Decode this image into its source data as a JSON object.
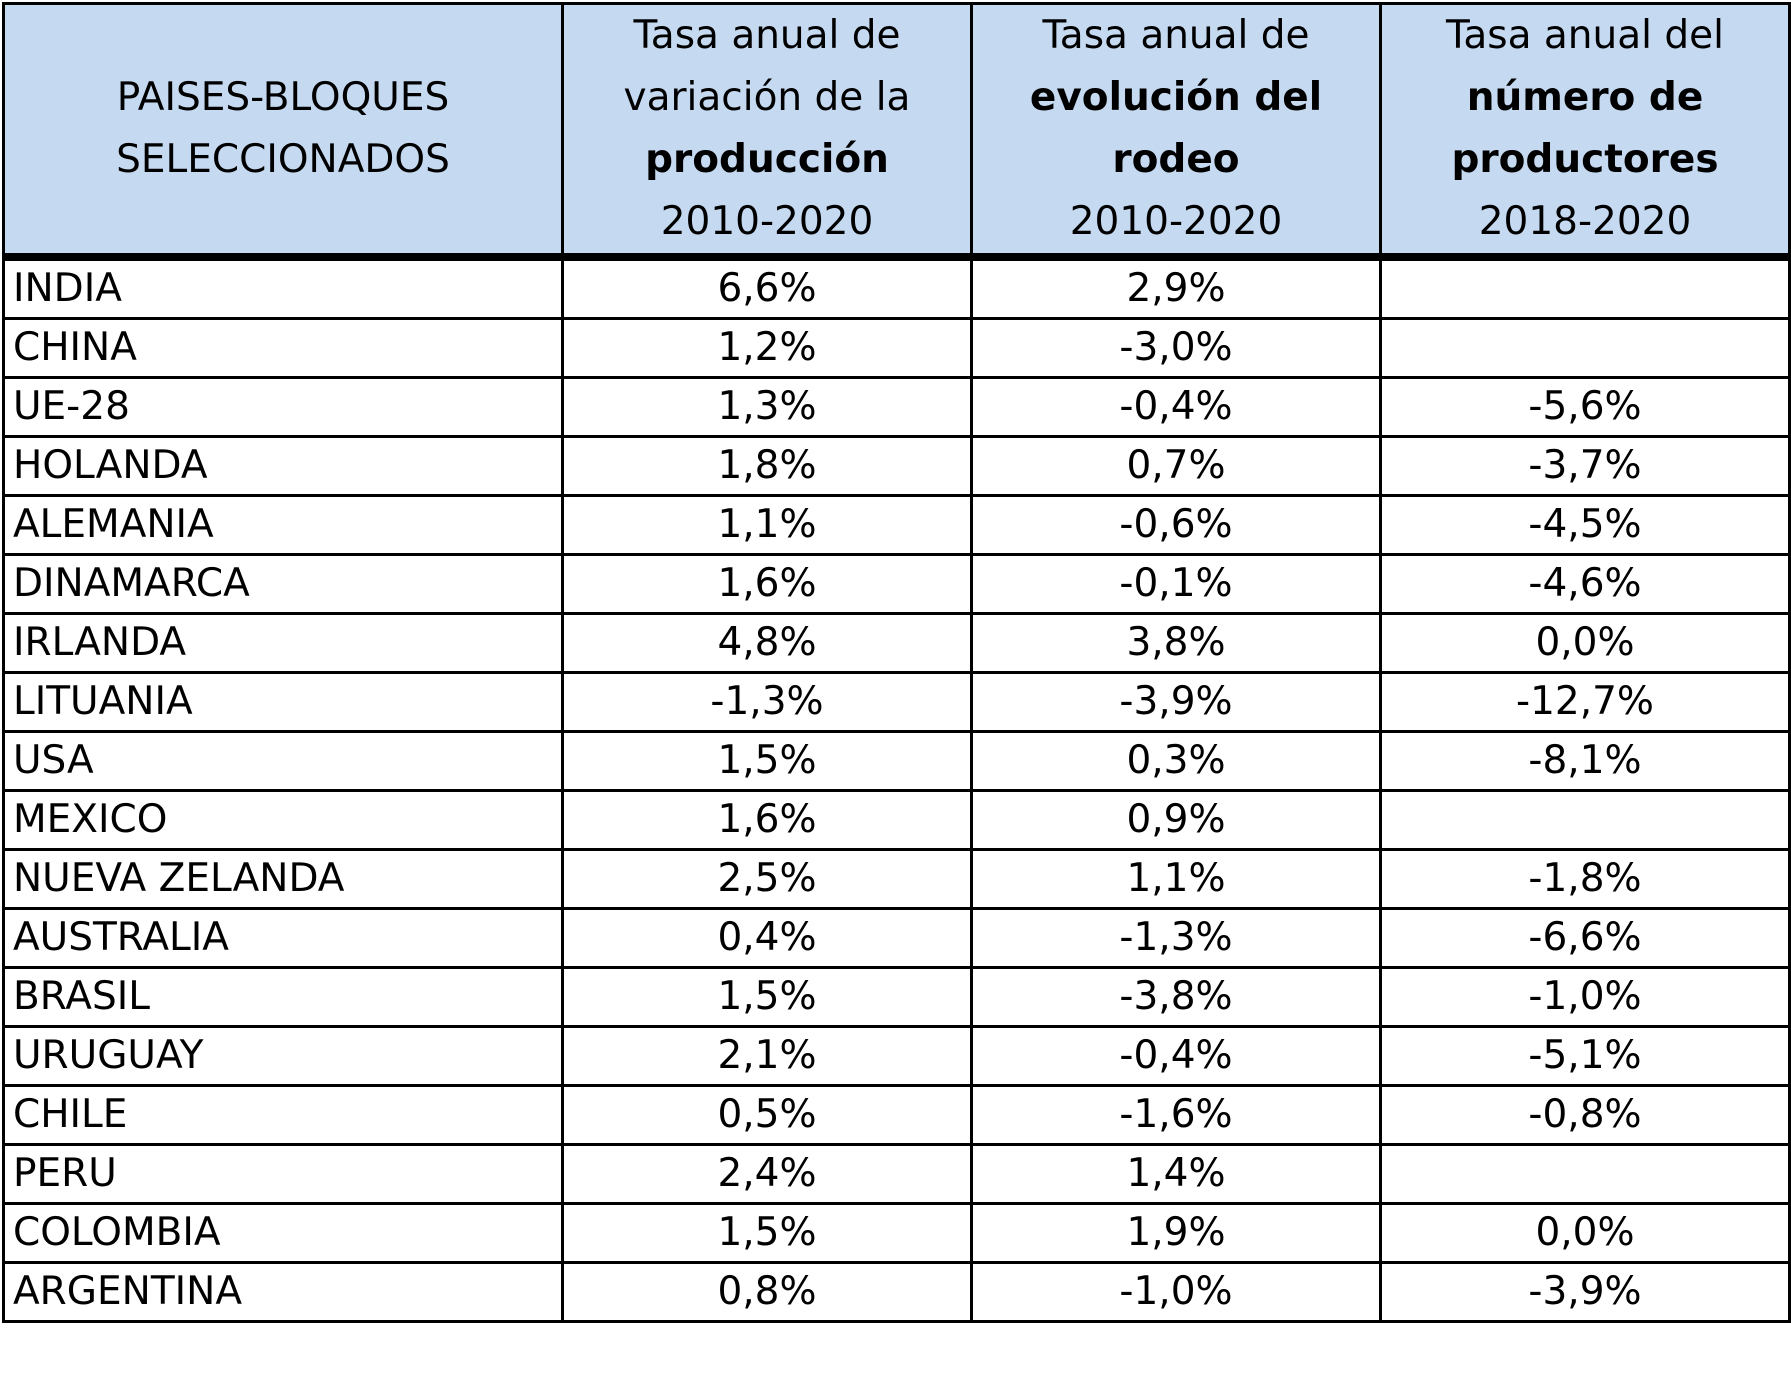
{
  "header": {
    "col0": [
      "PAISES-BLOQUES",
      "SELECCIONADOS"
    ],
    "col1": {
      "line1": "Tasa anual de",
      "line2": "variación de la",
      "bold": "producción",
      "period": "2010-2020"
    },
    "col2": {
      "line1": "Tasa anual de",
      "bold": "evolución del rodeo",
      "period": "2010-2020"
    },
    "col3": {
      "line1": "Tasa anual del",
      "bold1": "número de",
      "bold2": "productores",
      "period": "2018-2020"
    }
  },
  "rows": [
    {
      "pais": "INDIA",
      "produccion": "6,6%",
      "rodeo": "2,9%",
      "productores": ""
    },
    {
      "pais": "CHINA",
      "produccion": "1,2%",
      "rodeo": "-3,0%",
      "productores": ""
    },
    {
      "pais": "UE-28",
      "produccion": "1,3%",
      "rodeo": "-0,4%",
      "productores": "-5,6%"
    },
    {
      "pais": "HOLANDA",
      "produccion": "1,8%",
      "rodeo": "0,7%",
      "productores": "-3,7%"
    },
    {
      "pais": "ALEMANIA",
      "produccion": "1,1%",
      "rodeo": "-0,6%",
      "productores": "-4,5%"
    },
    {
      "pais": "DINAMARCA",
      "produccion": "1,6%",
      "rodeo": "-0,1%",
      "productores": "-4,6%"
    },
    {
      "pais": "IRLANDA",
      "produccion": "4,8%",
      "rodeo": "3,8%",
      "productores": "0,0%"
    },
    {
      "pais": "LITUANIA",
      "produccion": "-1,3%",
      "rodeo": "-3,9%",
      "productores": "-12,7%"
    },
    {
      "pais": "USA",
      "produccion": "1,5%",
      "rodeo": "0,3%",
      "productores": "-8,1%"
    },
    {
      "pais": "MEXICO",
      "produccion": "1,6%",
      "rodeo": "0,9%",
      "productores": ""
    },
    {
      "pais": "NUEVA ZELANDA",
      "produccion": "2,5%",
      "rodeo": "1,1%",
      "productores": "-1,8%"
    },
    {
      "pais": "AUSTRALIA",
      "produccion": "0,4%",
      "rodeo": "-1,3%",
      "productores": "-6,6%"
    },
    {
      "pais": "BRASIL",
      "produccion": "1,5%",
      "rodeo": "-3,8%",
      "productores": "-1,0%"
    },
    {
      "pais": "URUGUAY",
      "produccion": "2,1%",
      "rodeo": "-0,4%",
      "productores": "-5,1%"
    },
    {
      "pais": "CHILE",
      "produccion": "0,5%",
      "rodeo": "-1,6%",
      "productores": "-0,8%"
    },
    {
      "pais": "PERU",
      "produccion": "2,4%",
      "rodeo": "1,4%",
      "productores": ""
    },
    {
      "pais": "COLOMBIA",
      "produccion": "1,5%",
      "rodeo": "1,9%",
      "productores": "0,0%"
    },
    {
      "pais": "ARGENTINA",
      "produccion": "0,8%",
      "rodeo": "-1,0%",
      "productores": "-3,9%"
    }
  ],
  "colors": {
    "header_bg": "#c5d9f1",
    "border": "#000000"
  }
}
